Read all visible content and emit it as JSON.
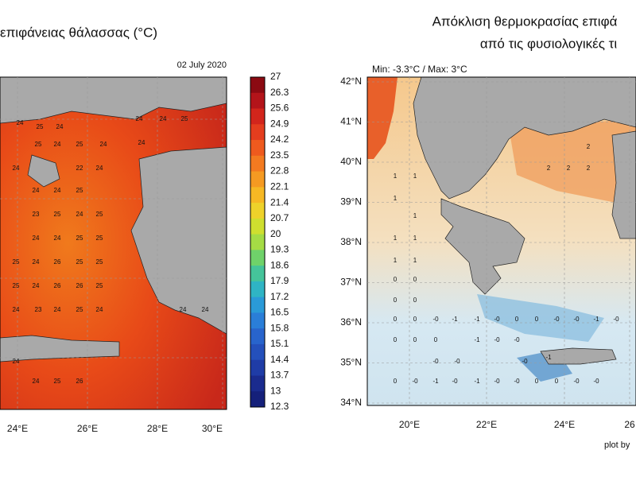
{
  "left_panel": {
    "title": "επιφάνειας θάλασσας (°C)",
    "date": "02 July 2020",
    "x_labels": [
      "24°E",
      "26°E",
      "28°E",
      "30°E"
    ],
    "colorbar_labels": [
      "27",
      "26.3",
      "25.6",
      "24.9",
      "24.2",
      "23.5",
      "22.8",
      "22.1",
      "21.4",
      "20.7",
      "20",
      "19.3",
      "18.6",
      "17.9",
      "17.2",
      "16.5",
      "15.8",
      "15.1",
      "14.4",
      "13.7",
      "13",
      "12.3"
    ],
    "map_labels": [
      "24",
      "25",
      "24",
      "25",
      "24",
      "25",
      "24",
      "24",
      "24",
      "25",
      "24",
      "22",
      "24",
      "24",
      "24",
      "24",
      "25",
      "23",
      "25",
      "24",
      "25",
      "24",
      "24",
      "25",
      "25",
      "25",
      "24",
      "26",
      "25",
      "25",
      "25",
      "24",
      "26",
      "26",
      "25",
      "24",
      "23",
      "24",
      "25",
      "24",
      "24",
      "24",
      "24",
      "24",
      "25",
      "26"
    ]
  },
  "right_panel": {
    "title_lines": [
      "Απόκλιση θερμοκρασίας επιφά",
      "από τις φυσιολογικές τι"
    ],
    "range_note": "Min: -3.3°C / Max: 3°C",
    "y_labels": [
      "42°N",
      "41°N",
      "40°N",
      "39°N",
      "38°N",
      "37°N",
      "36°N",
      "35°N",
      "34°N"
    ],
    "x_labels": [
      "20°E",
      "22°E",
      "24°E",
      "26"
    ],
    "credit": "plot by",
    "map_labels": [
      "1",
      "1",
      "1",
      "1",
      "1",
      "1",
      "2",
      "2",
      "2",
      "2",
      "1",
      "1",
      "0",
      "0",
      "0",
      "0",
      "0",
      "0",
      "-0",
      "-1",
      "-1",
      "-0",
      "0",
      "0",
      "-0",
      "-0",
      "-1",
      "-0",
      "-1",
      "-0",
      "-0",
      "0",
      "0",
      "0",
      "0",
      "-0",
      "-1",
      "-0",
      "-1",
      "-0",
      "-0",
      "0",
      "0",
      "-0",
      "-0",
      "-1",
      "-0",
      "-0",
      "-0"
    ]
  }
}
